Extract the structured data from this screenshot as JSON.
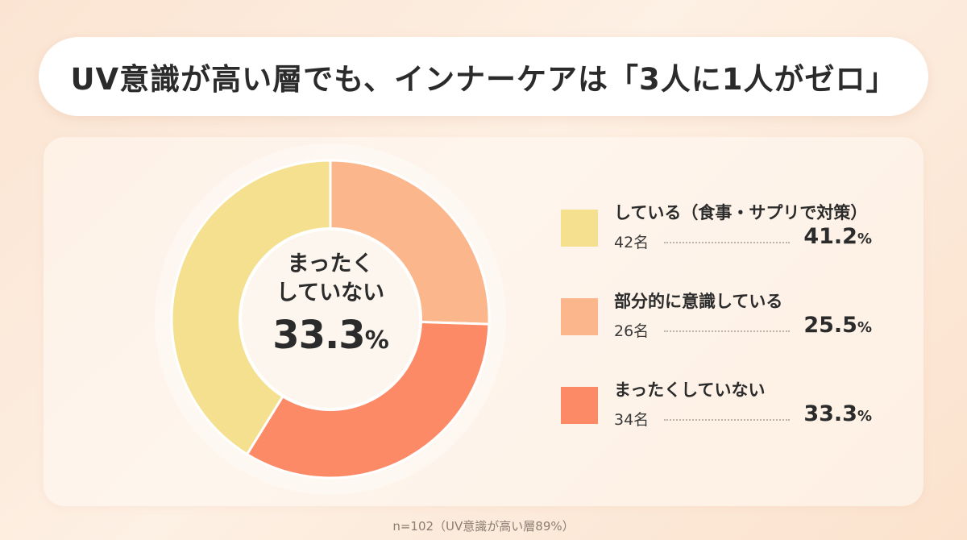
{
  "title": "UV意識が高い層でも、インナーケアは「3人に1人がゼロ」",
  "center": {
    "label_line1": "まったく",
    "label_line2": "していない",
    "value": "33.3",
    "unit": "%"
  },
  "chart_data": {
    "type": "pie",
    "title": "UV意識が高い層でも、インナーケアは「3人に1人がゼロ」",
    "donut": true,
    "unit": "%",
    "categories": [
      "している（食事・サプリで対策）",
      "部分的に意識している",
      "まったくしていない"
    ],
    "values": [
      41.2,
      25.5,
      33.3
    ],
    "counts": [
      42,
      26,
      34
    ],
    "colors": [
      "#f4e08e",
      "#fbb68b",
      "#fd8a66"
    ],
    "legend_position": "right"
  },
  "legend": [
    {
      "label": "している（食事・サプリで対策）",
      "count": "42名",
      "pct": "41.2",
      "unit": "%",
      "color": "#f4e08e"
    },
    {
      "label": "部分的に意識している",
      "count": "26名",
      "pct": "25.5",
      "unit": "%",
      "color": "#fbb68b"
    },
    {
      "label": "まったくしていない",
      "count": "34名",
      "pct": "33.3",
      "unit": "%",
      "color": "#fd8a66"
    }
  ],
  "footnote": "n=102（UV意識が高い層89%）"
}
